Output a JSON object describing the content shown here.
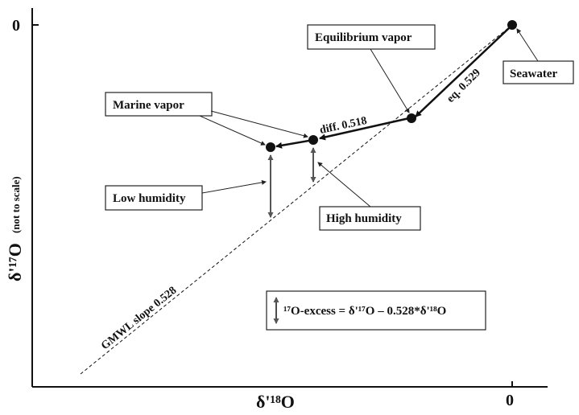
{
  "axes": {
    "x_label": "δ'¹⁸O",
    "y_label_main": "δ'¹⁷O",
    "y_label_note": "(not to scale)",
    "x_tick_zero": "0",
    "y_tick_zero": "0"
  },
  "lines": {
    "gmwl_label": "GMWL slope 0.528",
    "eq_label": "eq. 0.529",
    "diff_label": "diff. 0.518"
  },
  "callouts": {
    "seawater": "Seawater",
    "equilibrium_vapor": "Equilibrium vapor",
    "marine_vapor": "Marine vapor",
    "low_humidity": "Low humidity",
    "high_humidity": "High humidity"
  },
  "legend": {
    "excess_equation": "¹⁷O-excess = δ'¹⁷O – 0.528*δ'¹⁸O"
  },
  "colors": {
    "ink": "#111111",
    "arrow_gray": "#555555"
  }
}
